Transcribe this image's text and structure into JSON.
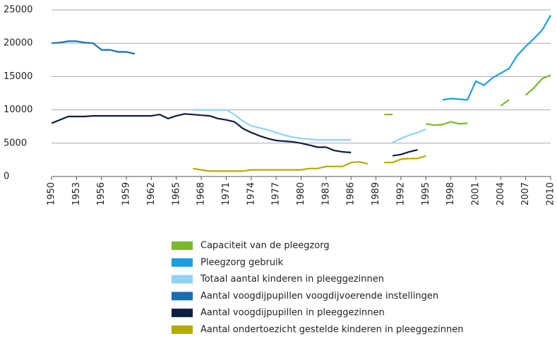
{
  "chart_data": {
    "type": "line",
    "x": [
      1950,
      1951,
      1952,
      1953,
      1954,
      1955,
      1956,
      1957,
      1958,
      1959,
      1960,
      1961,
      1962,
      1963,
      1964,
      1965,
      1966,
      1967,
      1968,
      1969,
      1970,
      1971,
      1972,
      1973,
      1974,
      1975,
      1976,
      1977,
      1978,
      1979,
      1980,
      1981,
      1982,
      1983,
      1984,
      1985,
      1986,
      1987,
      1988,
      1989,
      1990,
      1991,
      1992,
      1993,
      1994,
      1995,
      1996,
      1997,
      1998,
      1999,
      2000,
      2001,
      2002,
      2003,
      2004,
      2005,
      2006,
      2007,
      2008,
      2009,
      2010
    ],
    "series": [
      {
        "name": "Capaciteit van de pleegzorg",
        "color": "#7ab929",
        "values": [
          null,
          null,
          null,
          null,
          null,
          null,
          null,
          null,
          null,
          null,
          null,
          null,
          null,
          null,
          null,
          null,
          null,
          null,
          null,
          null,
          null,
          null,
          null,
          null,
          null,
          null,
          null,
          null,
          null,
          null,
          null,
          null,
          null,
          null,
          null,
          null,
          null,
          null,
          null,
          null,
          9300,
          9300,
          null,
          null,
          null,
          7900,
          7700,
          7800,
          8200,
          7900,
          8000,
          null,
          null,
          null,
          10600,
          11500,
          null,
          12200,
          13300,
          14700,
          15200
        ]
      },
      {
        "name": "Pleegzorg gebruik",
        "color": "#1b9ee0",
        "values": [
          null,
          null,
          null,
          null,
          null,
          null,
          null,
          null,
          null,
          null,
          null,
          null,
          null,
          null,
          null,
          null,
          null,
          null,
          null,
          null,
          null,
          null,
          null,
          null,
          null,
          null,
          null,
          null,
          null,
          null,
          null,
          null,
          null,
          null,
          null,
          null,
          null,
          null,
          null,
          null,
          null,
          null,
          null,
          null,
          null,
          null,
          null,
          11500,
          11700,
          11600,
          11500,
          14300,
          13700,
          14800,
          15500,
          16200,
          18200,
          19500,
          20700,
          22000,
          24200
        ]
      },
      {
        "name": "Totaal aantal kinderen in pleeggezinnen",
        "color": "#8fd3f5",
        "values": [
          null,
          null,
          null,
          null,
          null,
          null,
          null,
          null,
          null,
          null,
          null,
          null,
          null,
          null,
          null,
          null,
          null,
          10000,
          10000,
          10000,
          10000,
          10000,
          9300,
          8300,
          7600,
          7300,
          7000,
          6600,
          6200,
          5900,
          5700,
          5600,
          5500,
          5500,
          5500,
          5500,
          5500,
          null,
          null,
          null,
          null,
          5100,
          5700,
          6200,
          6600,
          7100,
          null,
          null,
          null,
          null,
          null,
          null,
          null,
          null,
          null,
          null,
          null,
          null,
          null,
          null,
          null
        ]
      },
      {
        "name": "Aantal voogdijpupillen voogdijvoerende instellingen",
        "color": "#1a6db3",
        "values": [
          20000,
          20100,
          20300,
          20300,
          20100,
          20000,
          19000,
          19000,
          18700,
          18700,
          18400,
          null,
          null,
          null,
          null,
          null,
          null,
          null,
          null,
          null,
          null,
          null,
          null,
          null,
          null,
          null,
          null,
          null,
          null,
          null,
          null,
          null,
          null,
          null,
          null,
          null,
          null,
          null,
          null,
          null,
          null,
          null,
          null,
          null,
          null,
          null,
          null,
          null,
          null,
          null,
          null,
          null,
          null,
          null,
          null,
          null,
          null,
          null,
          null,
          null,
          null
        ]
      },
      {
        "name": "Aantal voogdijpupillen in pleeggezinnen",
        "color": "#0b1f3f",
        "values": [
          8000,
          8500,
          9000,
          9000,
          9000,
          9100,
          9100,
          9100,
          9100,
          9100,
          9100,
          9100,
          9100,
          9300,
          8700,
          9100,
          9400,
          9300,
          9200,
          9100,
          8700,
          8500,
          8200,
          7200,
          6600,
          6100,
          5700,
          5400,
          5300,
          5200,
          5000,
          4700,
          4400,
          4400,
          3900,
          3700,
          3600,
          null,
          null,
          null,
          null,
          3100,
          3300,
          3700,
          4000,
          null,
          null,
          null,
          null,
          null,
          null,
          null,
          null,
          null,
          null,
          null,
          null,
          null,
          null,
          null,
          null
        ]
      },
      {
        "name": "Aantal ondertoezicht gestelde kinderen in pleeggezinnen",
        "color": "#b6a901",
        "values": [
          null,
          null,
          null,
          null,
          null,
          null,
          null,
          null,
          null,
          null,
          null,
          null,
          null,
          null,
          null,
          null,
          null,
          1200,
          1000,
          800,
          800,
          800,
          800,
          800,
          1000,
          1000,
          1000,
          1000,
          1000,
          1000,
          1000,
          1200,
          1200,
          1500,
          1500,
          1500,
          2100,
          2200,
          1900,
          null,
          2100,
          2100,
          2600,
          2700,
          2700,
          3100,
          null,
          null,
          null,
          null,
          null,
          null,
          null,
          null,
          null,
          null,
          null,
          null,
          null,
          null,
          null
        ]
      }
    ],
    "xlim": [
      1950,
      2010
    ],
    "xticks": [
      1950,
      1953,
      1956,
      1959,
      1962,
      1965,
      1968,
      1971,
      1974,
      1977,
      1980,
      1983,
      1986,
      1989,
      1992,
      1995,
      1998,
      2001,
      2004,
      2007,
      2010
    ],
    "ylim": [
      0,
      25000
    ],
    "yticks": [
      0,
      5000,
      10000,
      15000,
      20000,
      25000
    ],
    "grid": true
  }
}
